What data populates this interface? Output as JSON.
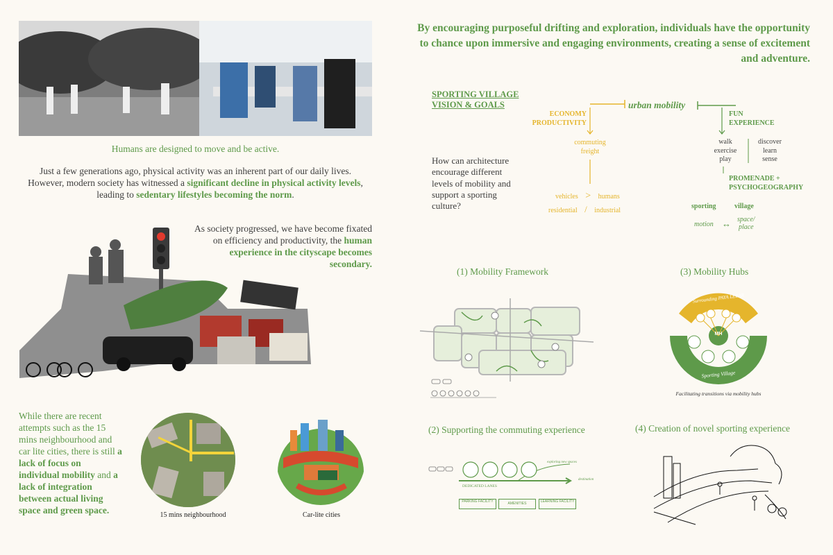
{
  "quote": "By encouraging purposeful drifting and exploration, individuals have the opportunity to chance upon immersive and engaging environments, creating a sense of excitement and adventure.",
  "left": {
    "lead": "Humans are designed to move and be active.",
    "p1_a": "Just a few generations ago, physical activity was an inherent part of our daily lives. However, modern society has witnessed a ",
    "p1_b": "significant decline in physical activity levels",
    "p1_c": ", leading to ",
    "p1_d": "sedentary lifestyles becoming the norm",
    "p1_e": ".",
    "p2_a": "As society progressed, we have become fixated on efficiency and productivity, the ",
    "p2_b": "human experience in the cityscape becomes secondary.",
    "p3_a": "While there are recent attempts such as the 15 mins neighbourhood and car lite cities, there is still ",
    "p3_b": "a lack of focus on individual mobility",
    "p3_c": " and ",
    "p3_d": "a lack of integration between actual living space and green space.",
    "cap_15min": "15 mins neighbourhood",
    "cap_carlite": "Car-lite cities"
  },
  "vision": {
    "title_1": "SPORTING VILLAGE",
    "title_2": "VISION & GOALS",
    "question": "How can architecture encourage different levels of mobility and support a sporting culture?",
    "urban_mobility": "urban mobility",
    "economy": "ECONOMY",
    "productivity": "PRODUCTIVITY",
    "fun": "FUN",
    "experience": "EXPERIENCE",
    "commuting": "commuting",
    "freight": "freight",
    "vehicles": "vehicles",
    "gt": ">",
    "humans": "humans",
    "residential": "residential",
    "slash": "/",
    "industrial": "industrial",
    "walk": "walk",
    "exercise": "exercise",
    "play": "play",
    "discover": "discover",
    "learn": "learn",
    "sense": "sense",
    "promenade": "PROMENADE +",
    "psychogeography": "PSYCHOGEOGRAPHY",
    "sporting": "sporting",
    "village": "village",
    "motion": "motion",
    "arrow": "↔",
    "space": "space/",
    "place": "place"
  },
  "sections": {
    "s1": "(1) Mobility Framework",
    "s2": "(2) Supporting the commuting experience",
    "s3": "(3) Mobility Hubs",
    "s4": "(4) Creation of novel sporting experience"
  },
  "hub": {
    "surrounding": "Surrounding PAYA LEBAR",
    "center": "MH",
    "sporting_village": "Sporting Village",
    "caption": "Facilitating transitions via mobility hubs"
  },
  "commute": {
    "dedicated": "DEDICATED LANES",
    "exploring": "exploring new spaces",
    "destination": "destination",
    "pill1": "PARKING FACILITY",
    "pill2": "AMENITIES",
    "pill3": "LEARNING FACILITY"
  },
  "colors": {
    "green": "#5e9a4a",
    "yellow": "#e5b52c"
  }
}
